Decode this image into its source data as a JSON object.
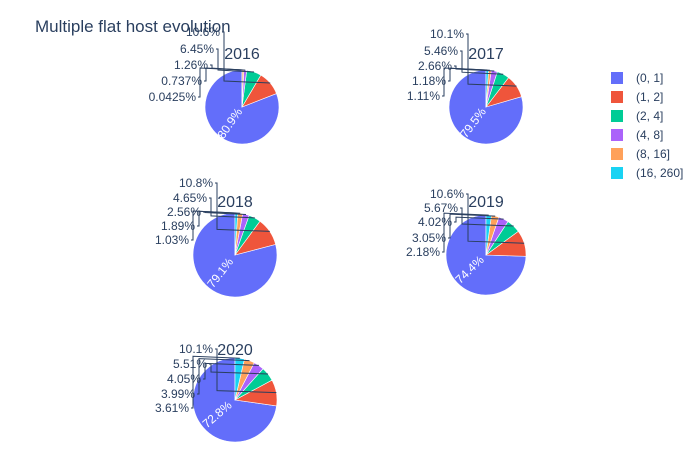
{
  "title": "Multiple flat host evolution",
  "legend": {
    "placement": "right"
  },
  "chart_data": {
    "type": "pie",
    "categories": [
      "(0, 1]",
      "(1, 2]",
      "(2, 4]",
      "(4, 8]",
      "(8, 16]",
      "(16, 260]"
    ],
    "colors": [
      "#636efa",
      "#ef553b",
      "#00cc96",
      "#ab63fa",
      "#ffa15a",
      "#19d3f3"
    ],
    "pies": [
      {
        "title": "2016",
        "values": [
          80.9,
          10.6,
          6.45,
          1.26,
          0.737,
          0.0425
        ],
        "labels": [
          "80.9%",
          "10.6%",
          "6.45%",
          "1.26%",
          "0.737%",
          "0.0425%"
        ]
      },
      {
        "title": "2017",
        "values": [
          79.5,
          10.1,
          5.46,
          2.66,
          1.18,
          1.11
        ],
        "labels": [
          "79.5%",
          "10.1%",
          "5.46%",
          "2.66%",
          "1.18%",
          "1.11%"
        ]
      },
      {
        "title": "2018",
        "values": [
          79.1,
          10.8,
          4.65,
          2.56,
          1.89,
          1.03
        ],
        "labels": [
          "79.1%",
          "10.8%",
          "4.65%",
          "2.56%",
          "1.89%",
          "1.03%"
        ]
      },
      {
        "title": "2019",
        "values": [
          74.4,
          10.6,
          5.67,
          4.02,
          3.05,
          2.18
        ],
        "labels": [
          "74.4%",
          "10.6%",
          "5.67%",
          "4.02%",
          "3.05%",
          "2.18%"
        ]
      },
      {
        "title": "2020",
        "values": [
          72.8,
          10.1,
          5.51,
          4.05,
          3.99,
          3.61
        ],
        "labels": [
          "72.8%",
          "10.1%",
          "5.51%",
          "4.05%",
          "3.99%",
          "3.61%"
        ]
      }
    ]
  }
}
